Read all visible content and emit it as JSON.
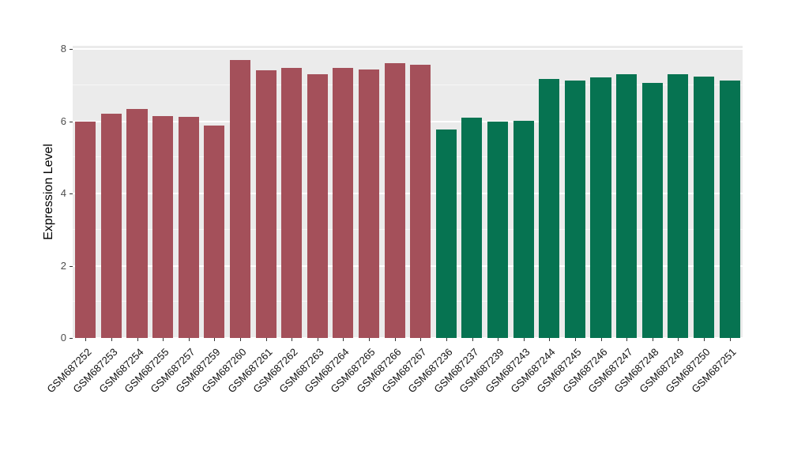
{
  "chart_data": {
    "type": "bar",
    "title": "",
    "xlabel": "",
    "ylabel": "Expression Level",
    "ylim": [
      0,
      8
    ],
    "yticks": [
      0,
      2,
      4,
      6,
      8
    ],
    "grid": true,
    "legend_position": "none",
    "panel_bg": "#EBEBEB",
    "grid_color": "#FFFFFF",
    "categories": [
      "GSM687252",
      "GSM687253",
      "GSM687254",
      "GSM687255",
      "GSM687257",
      "GSM687259",
      "GSM687260",
      "GSM687261",
      "GSM687262",
      "GSM687263",
      "GSM687264",
      "GSM687265",
      "GSM687266",
      "GSM687267",
      "GSM687236",
      "GSM687237",
      "GSM687239",
      "GSM687243",
      "GSM687244",
      "GSM687245",
      "GSM687246",
      "GSM687247",
      "GSM687248",
      "GSM687249",
      "GSM687250",
      "GSM687251"
    ],
    "values": [
      6.0,
      6.2,
      6.35,
      6.15,
      6.13,
      5.88,
      7.7,
      7.42,
      7.47,
      7.3,
      7.48,
      7.44,
      7.6,
      7.56,
      5.78,
      6.1,
      5.98,
      6.02,
      7.17,
      7.13,
      7.22,
      7.3,
      7.05,
      7.3,
      7.24,
      7.12
    ],
    "groups": [
      "group1",
      "group1",
      "group1",
      "group1",
      "group1",
      "group1",
      "group1",
      "group1",
      "group1",
      "group1",
      "group1",
      "group1",
      "group1",
      "group1",
      "group2",
      "group2",
      "group2",
      "group2",
      "group2",
      "group2",
      "group2",
      "group2",
      "group2",
      "group2",
      "group2",
      "group2"
    ],
    "group_colors": {
      "group1": "#A4505A",
      "group2": "#067351"
    }
  }
}
